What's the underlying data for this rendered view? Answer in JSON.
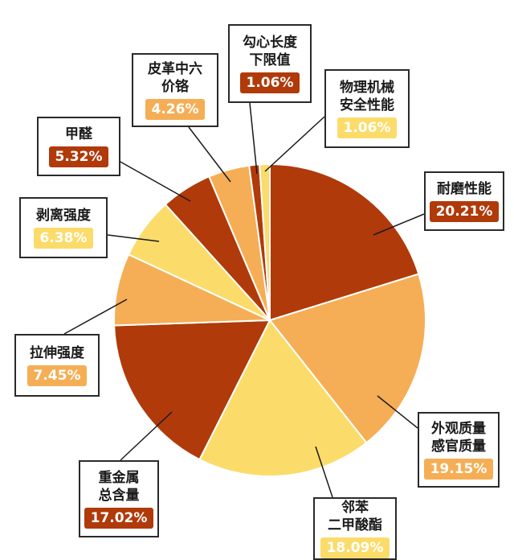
{
  "colors": {
    "dark": "#B03A0A",
    "mid": "#F5AE55",
    "light": "#FBDC6A",
    "line": "#1a1a1a",
    "divider": "#ffffff"
  },
  "chart_data": {
    "type": "pie",
    "start": "12 o'clock, clockwise",
    "slices": [
      {
        "label": "耐磨性能",
        "value": 20.21,
        "pct": "20.21%",
        "color": "dark"
      },
      {
        "label": "外观质量\n感官质量",
        "value": 19.15,
        "pct": "19.15%",
        "color": "mid"
      },
      {
        "label": "邻苯\n二甲酸酯",
        "value": 18.09,
        "pct": "18.09%",
        "color": "light"
      },
      {
        "label": "重金属\n总含量",
        "value": 17.02,
        "pct": "17.02%",
        "color": "dark"
      },
      {
        "label": "拉伸强度",
        "value": 7.45,
        "pct": "7.45%",
        "color": "mid"
      },
      {
        "label": "剥离强度",
        "value": 6.38,
        "pct": "6.38%",
        "color": "light"
      },
      {
        "label": "甲醛",
        "value": 5.32,
        "pct": "5.32%",
        "color": "dark"
      },
      {
        "label": "皮革中六\n价铬",
        "value": 4.26,
        "pct": "4.26%",
        "color": "mid"
      },
      {
        "label": "勾心长度\n下限值",
        "value": 1.06,
        "pct": "1.06%",
        "color": "dark"
      },
      {
        "label": "物理机械\n安全性能",
        "value": 1.06,
        "pct": "1.06%",
        "color": "light"
      }
    ]
  }
}
